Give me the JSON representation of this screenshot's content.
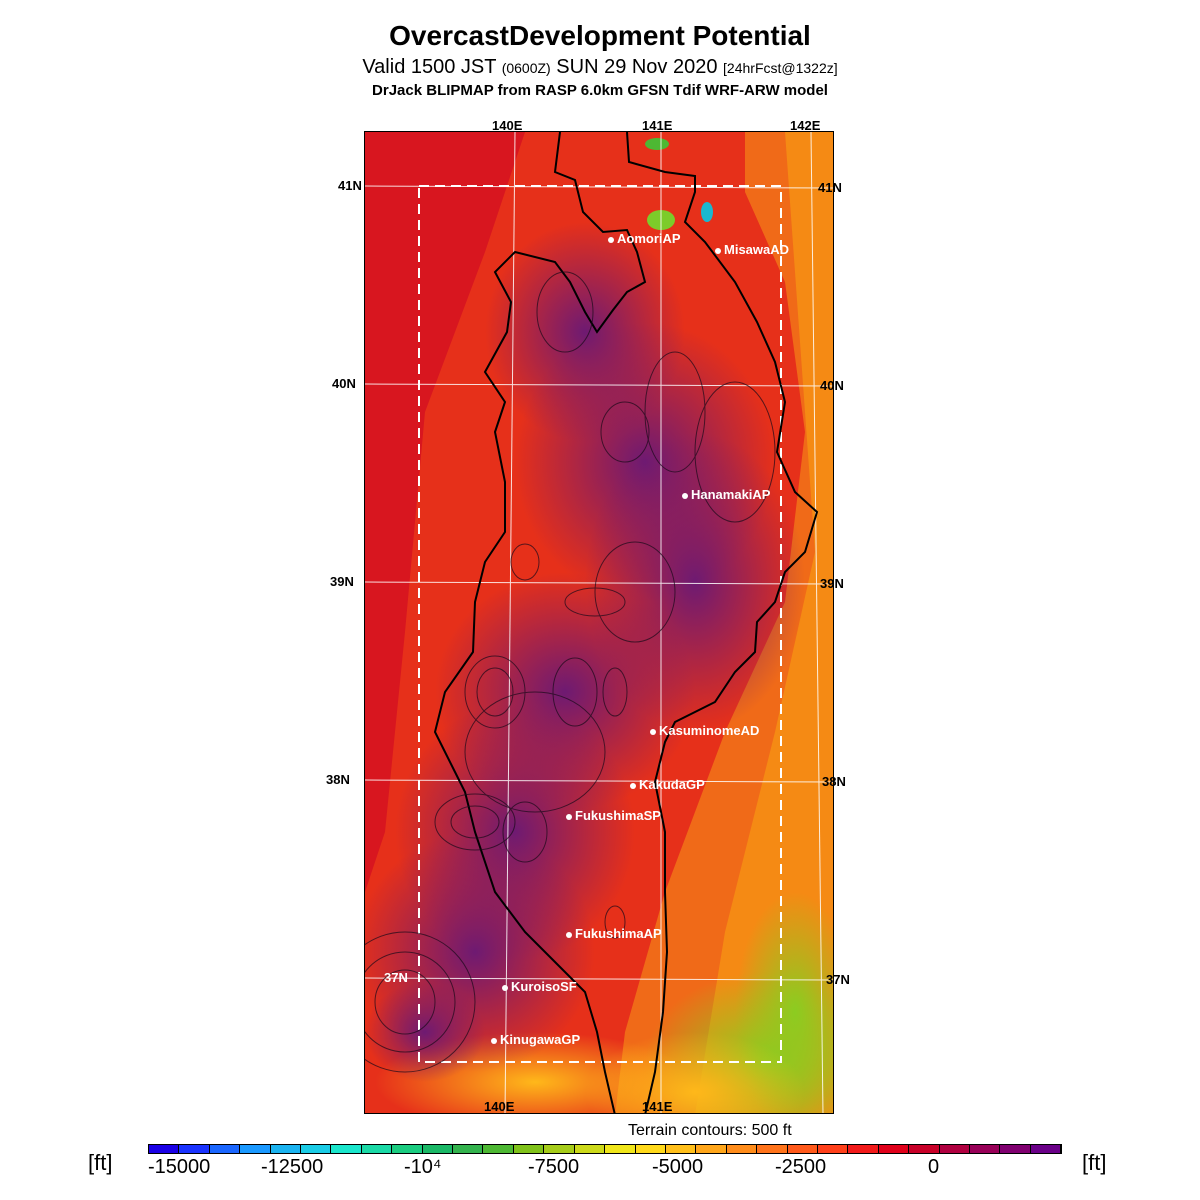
{
  "header": {
    "title": "OvercastDevelopment Potential",
    "subtitle_main": "Valid 1500 JST",
    "subtitle_utc": "(0600Z)",
    "subtitle_date": "SUN 29 Nov 2020",
    "subtitle_fcst": "[24hrFcst@1322z]",
    "model": "DrJack BLIPMAP from RASP 6.0km GFSN Tdif WRF-ARW model"
  },
  "map": {
    "lon_ticks_top": [
      "140E",
      "141E",
      "142E"
    ],
    "lon_ticks_bottom": [
      "140E",
      "141E"
    ],
    "lat_ticks_left": [
      "41N",
      "40N",
      "39N",
      "38N",
      "37N"
    ],
    "lat_ticks_right": [
      "41N",
      "40N",
      "39N",
      "38N",
      "37N"
    ],
    "stations": [
      {
        "name": "AomoriAP"
      },
      {
        "name": "MisawaAD"
      },
      {
        "name": "HanamakiAP"
      },
      {
        "name": "KasuminomeAD"
      },
      {
        "name": "KakudaGP"
      },
      {
        "name": "FukushimaSP"
      },
      {
        "name": "FukushimaAP"
      },
      {
        "name": "KuroisoSF"
      },
      {
        "name": "KinugawaGP"
      }
    ],
    "terrain_note": "Terrain contours: 500 ft"
  },
  "legend": {
    "unit": "[ft]",
    "labels": [
      "-15000",
      "-12500",
      "-10⁴",
      "-7500",
      "-5000",
      "-2500",
      "0"
    ],
    "colors": [
      "#1a00e6",
      "#1a33ff",
      "#1a66ff",
      "#1a99ff",
      "#1ab3f0",
      "#1acce6",
      "#1ae6cc",
      "#1ad9a6",
      "#1acc80",
      "#1ab866",
      "#33b34d",
      "#4db833",
      "#80c21a",
      "#a6cc1a",
      "#ccd91a",
      "#f0e61a",
      "#ffd91a",
      "#ffbf1a",
      "#ffa61a",
      "#ff8c1a",
      "#ff731a",
      "#ff591a",
      "#ff401a",
      "#f21a1a",
      "#e0001a",
      "#c80028",
      "#b00040",
      "#980058",
      "#800070",
      "#6a0088"
    ]
  },
  "colors": {
    "field_low": "#7a1a6e",
    "field_mid": "#d8161f",
    "field_high": "#f08a12",
    "field_green": "#8ccc20"
  }
}
